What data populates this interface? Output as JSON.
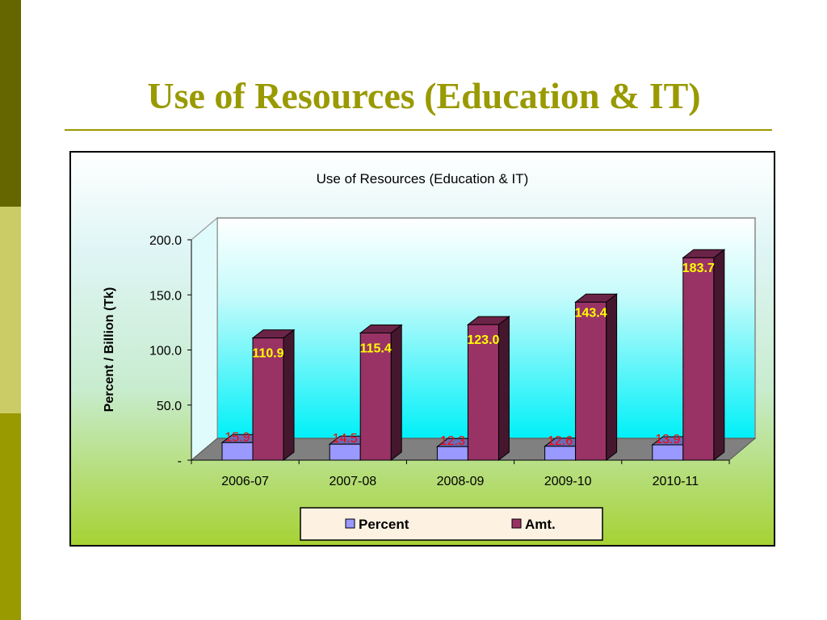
{
  "slide": {
    "title": "Use of Resources (Education & IT)"
  },
  "colors": {
    "sidebar_top": "#666600",
    "sidebar_mid": "#cccc66",
    "sidebar_bottom": "#999900",
    "title": "#999900",
    "percent_series": "#9999ff",
    "amt_series": "#993366",
    "percent_label": "#ff0000",
    "amt_label": "#ffff00"
  },
  "chart_data": {
    "type": "bar",
    "title": "Use of Resources (Education & IT)",
    "xlabel": "",
    "ylabel": "Percent / Billion (Tk)",
    "categories": [
      "2006-07",
      "2007-08",
      "2008-09",
      "2009-10",
      "2010-11"
    ],
    "series": [
      {
        "name": "Percent",
        "values": [
          15.9,
          14.5,
          12.3,
          12.6,
          13.9
        ],
        "labels": [
          "15.9",
          "14.5",
          "12.3",
          "12.6",
          "13.9"
        ]
      },
      {
        "name": "Amt.",
        "values": [
          110.9,
          115.4,
          123.0,
          143.4,
          183.7
        ],
        "labels": [
          "110.9",
          "115.4",
          "123.0",
          "143.4",
          "183.7"
        ]
      }
    ],
    "ylim": [
      0,
      200
    ],
    "yticks": [
      0,
      50,
      100,
      150,
      200
    ],
    "ytick_labels": [
      "-",
      "50.0",
      "100.0",
      "150.0",
      "200.0"
    ],
    "legend_position": "bottom",
    "style": "3d-clustered-column",
    "grid": false
  }
}
